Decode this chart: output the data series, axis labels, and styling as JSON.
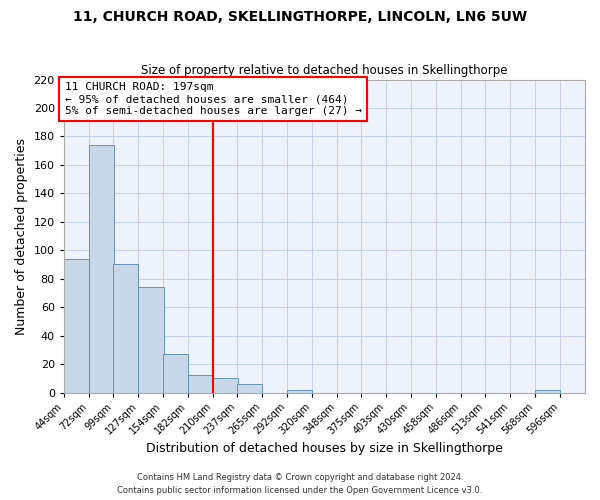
{
  "title1": "11, CHURCH ROAD, SKELLINGTHORPE, LINCOLN, LN6 5UW",
  "title2": "Size of property relative to detached houses in Skellingthorpe",
  "xlabel": "Distribution of detached houses by size in Skellingthorpe",
  "ylabel": "Number of detached properties",
  "bin_labels": [
    "44sqm",
    "72sqm",
    "99sqm",
    "127sqm",
    "154sqm",
    "182sqm",
    "210sqm",
    "237sqm",
    "265sqm",
    "292sqm",
    "320sqm",
    "348sqm",
    "375sqm",
    "403sqm",
    "430sqm",
    "458sqm",
    "486sqm",
    "513sqm",
    "541sqm",
    "568sqm",
    "596sqm"
  ],
  "bar_values": [
    94,
    174,
    90,
    74,
    27,
    12,
    10,
    6,
    0,
    2,
    0,
    0,
    0,
    0,
    0,
    0,
    0,
    0,
    0,
    2,
    0
  ],
  "bar_color": "#c8d8e8",
  "bar_edgecolor": "#5588aa",
  "vline_color": "red",
  "ylim": [
    0,
    220
  ],
  "yticks": [
    0,
    20,
    40,
    60,
    80,
    100,
    120,
    140,
    160,
    180,
    200,
    220
  ],
  "annotation_title": "11 CHURCH ROAD: 197sqm",
  "annotation_line1": "← 95% of detached houses are smaller (464)",
  "annotation_line2": "5% of semi-detached houses are larger (27) →",
  "footer1": "Contains HM Land Registry data © Crown copyright and database right 2024.",
  "footer2": "Contains public sector information licensed under the Open Government Licence v3.0.",
  "bg_color": "#eef2fa",
  "grid_color": "#c0cce0"
}
